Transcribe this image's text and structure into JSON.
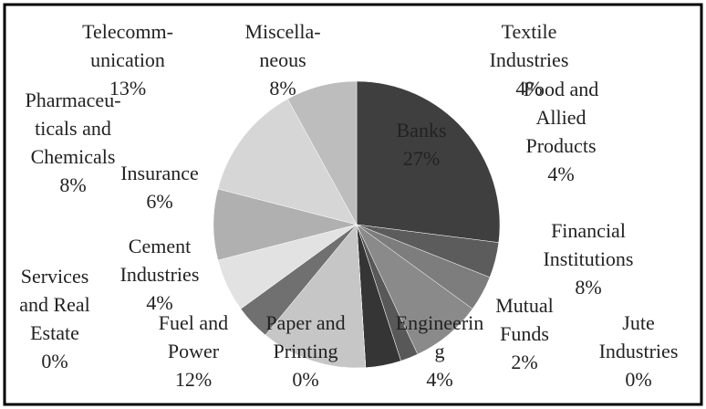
{
  "chart_data": {
    "type": "pie",
    "categories": [
      [
        "Banks"
      ],
      [
        "Textile",
        "Industries"
      ],
      [
        "Food and",
        "Allied",
        "Products"
      ],
      [
        "Financial",
        "Institutions"
      ],
      [
        "Mutual",
        "Funds"
      ],
      [
        "Jute",
        "Industries"
      ],
      [
        "Engineerin",
        "g"
      ],
      [
        "Paper and",
        "Printing"
      ],
      [
        "Fuel and",
        "Power"
      ],
      [
        "Services",
        "and Real",
        "Estate"
      ],
      [
        "Cement",
        "Industries"
      ],
      [
        "Insurance"
      ],
      [
        "Pharmaceu-",
        "ticals and",
        "Chemicals"
      ],
      [
        "Telecomm-",
        "unication"
      ],
      [
        "Miscella-",
        "neous"
      ]
    ],
    "values": [
      27,
      4,
      4,
      8,
      2,
      0,
      4,
      0,
      12,
      0,
      4,
      6,
      8,
      13,
      8
    ],
    "value_labels": [
      "27%",
      "4%",
      "4%",
      "8%",
      "2%",
      "0%",
      "4%",
      "0%",
      "12%",
      "0%",
      "4%",
      "6%",
      "8%",
      "13%",
      "8%"
    ],
    "colors": [
      "#3f3f3f",
      "#5c5c5c",
      "#7d7d7d",
      "#8a8a8a",
      "#585858",
      "#9a9a9a",
      "#353535",
      "#b4b4b4",
      "#c6c6c6",
      "#a8a8a8",
      "#707070",
      "#e2e2e2",
      "#b0b0b0",
      "#d6d6d6",
      "#bdbdbd"
    ]
  }
}
